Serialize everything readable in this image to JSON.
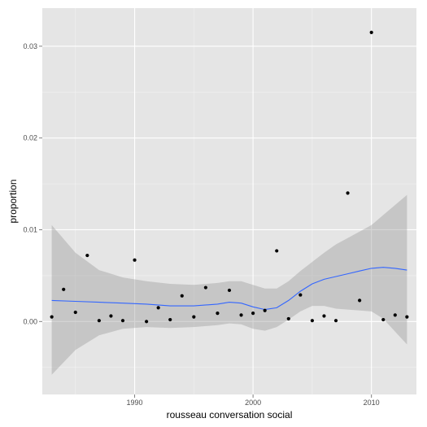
{
  "chart_data": {
    "type": "scatter",
    "xlabel": "rousseau conversation social",
    "ylabel": "proportion",
    "xlim": [
      1982.2,
      2013.8
    ],
    "ylim": [
      -0.00795,
      0.03415
    ],
    "x_ticks": [
      1990,
      2000,
      2010
    ],
    "x_tick_labels": [
      "1990",
      "2000",
      "2010"
    ],
    "y_ticks": [
      0.0,
      0.01,
      0.02,
      0.03
    ],
    "y_tick_labels": [
      "0.00",
      "0.01",
      "0.02",
      "0.03"
    ],
    "grid": true,
    "legend": "none",
    "points": {
      "x": [
        1983,
        1984,
        1985,
        1986,
        1987,
        1988,
        1989,
        1990,
        1991,
        1992,
        1993,
        1994,
        1995,
        1996,
        1997,
        1998,
        1999,
        2000,
        2001,
        2002,
        2003,
        2004,
        2005,
        2006,
        2007,
        2008,
        2009,
        2010,
        2011,
        2012,
        2013
      ],
      "y": [
        0.0005,
        0.0035,
        0.001,
        0.0072,
        0.0001,
        0.0006,
        0.0001,
        0.0067,
        0.0,
        0.0015,
        0.0002,
        0.0028,
        0.0005,
        0.0037,
        0.0009,
        0.0034,
        0.0007,
        0.0009,
        0.0012,
        0.0077,
        0.0003,
        0.0029,
        0.0001,
        0.0006,
        0.0001,
        0.014,
        0.0023,
        0.0315,
        0.0002,
        0.0007,
        0.0005
      ]
    },
    "smooth": {
      "x": [
        1983,
        1985,
        1987,
        1989,
        1991,
        1993,
        1995,
        1997,
        1998,
        1999,
        2000,
        2001,
        2002,
        2003,
        2004,
        2005,
        2006,
        2007,
        2008,
        2009,
        2010,
        2011,
        2012,
        2013
      ],
      "y": [
        0.0023,
        0.0022,
        0.0021,
        0.002,
        0.0019,
        0.0017,
        0.0017,
        0.0019,
        0.0021,
        0.002,
        0.0016,
        0.0013,
        0.0015,
        0.0023,
        0.0033,
        0.0041,
        0.0046,
        0.0049,
        0.0052,
        0.0055,
        0.0058,
        0.0059,
        0.0058,
        0.0056
      ],
      "ci_upper": [
        0.0105,
        0.0075,
        0.0056,
        0.0048,
        0.0044,
        0.0041,
        0.004,
        0.0042,
        0.0044,
        0.0044,
        0.004,
        0.0036,
        0.0036,
        0.0044,
        0.0055,
        0.0065,
        0.0075,
        0.0084,
        0.0091,
        0.0098,
        0.0105,
        0.0116,
        0.0127,
        0.0138
      ],
      "ci_lower": [
        -0.0058,
        -0.0031,
        -0.0015,
        -0.0008,
        -0.0006,
        -0.0007,
        -0.0006,
        -0.0004,
        -0.0002,
        -0.0003,
        -0.0008,
        -0.001,
        -0.0006,
        0.0002,
        0.0011,
        0.0017,
        0.0017,
        0.0014,
        0.0013,
        0.0012,
        0.0011,
        0.0003,
        -0.0011,
        -0.0025
      ]
    },
    "colors": {
      "panel_background": "#e5e5e5",
      "grid_major": "#ffffff",
      "grid_minor": "#f2f2f2",
      "points": "#000000",
      "smooth_line": "#3366ff",
      "ci_band": "#999999"
    }
  }
}
